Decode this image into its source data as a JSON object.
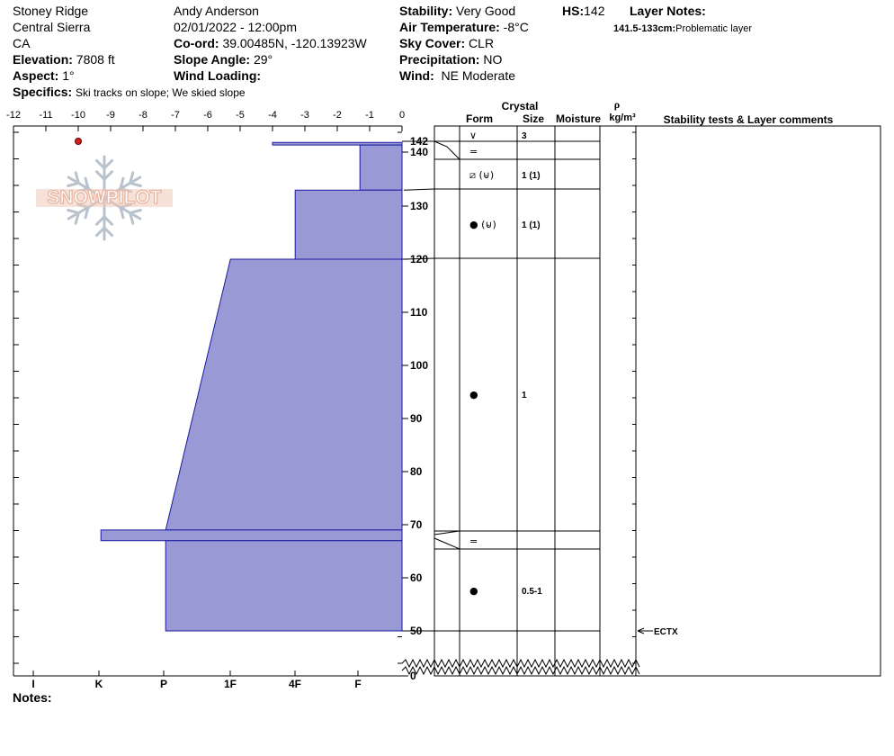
{
  "header": {
    "location": "Stoney Ridge",
    "range": "Central Sierra",
    "state": "CA",
    "elevation_label": "Elevation:",
    "elevation": "7808 ft",
    "aspect_label": "Aspect:",
    "aspect": "1°",
    "specifics_label": "Specifics:",
    "specifics": "Ski tracks on slope; We skied slope",
    "observer": "Andy Anderson",
    "datetime": "02/01/2022 - 12:00pm",
    "coord_label": "Co-ord:",
    "coord": "39.00485N, -120.13923W",
    "slope_label": "Slope Angle:",
    "slope": "29°",
    "wind_loading_label": "Wind Loading:",
    "wind_loading": "",
    "stability_label": "Stability:",
    "stability": "Very Good",
    "air_temp_label": "Air Temperature:",
    "air_temp": "-8°C",
    "sky_label": "Sky Cover:",
    "sky": "CLR",
    "precip_label": "Precipitation:",
    "precip": "NO",
    "wind_label": "Wind:",
    "wind": "NE Moderate",
    "hs_label": "HS:",
    "hs": "142",
    "layer_notes_label": "Layer Notes:",
    "layer_note_range": "141.5-133cm:",
    "layer_note_text": "Problematic layer"
  },
  "logo": {
    "text": "SNOWPILOT"
  },
  "notes_label": "Notes:",
  "chart_data": {
    "type": "area",
    "temp_axis": {
      "ticks": [
        "-12",
        "-11",
        "-10",
        "-9",
        "-8",
        "-7",
        "-6",
        "-5",
        "-4",
        "-3",
        "-2",
        "-1",
        "0"
      ],
      "range": [
        -12,
        0
      ]
    },
    "height_axis": {
      "ticks": [
        "142",
        "140",
        "130",
        "120",
        "110",
        "100",
        "90",
        "80",
        "70",
        "60",
        "50",
        "0"
      ],
      "range": [
        0,
        142
      ]
    },
    "hardness_axis": {
      "ticks": [
        "I",
        "K",
        "P",
        "1F",
        "4F",
        "F"
      ]
    },
    "temperature_points": [
      {
        "temp": -10,
        "height": 142
      }
    ],
    "hardness_profile": [
      {
        "top": 142,
        "bottom": 141.5,
        "upper_hardness": 4.0,
        "lower_hardness": 4.0
      },
      {
        "top": 141.5,
        "bottom": 133,
        "upper_hardness": 1.3,
        "lower_hardness": 1.3
      },
      {
        "top": 133,
        "bottom": 120,
        "upper_hardness": 3.3,
        "lower_hardness": 3.3
      },
      {
        "top": 120,
        "bottom": 69,
        "upper_hardness": 5.3,
        "lower_hardness": 7.3
      },
      {
        "top": 69,
        "bottom": 67,
        "upper_hardness": 9.3,
        "lower_hardness": 9.3
      },
      {
        "top": 67,
        "bottom": 50,
        "upper_hardness": 7.3,
        "lower_hardness": 7.3
      }
    ],
    "columns": {
      "crystal": "Crystal",
      "form": "Form",
      "size": "Size",
      "moisture": "Moisture",
      "rho": "ρ",
      "density_unit": "kg/m³",
      "comments": "Stability tests & Layer comments"
    },
    "layer_boundaries": [
      142,
      141.5,
      138,
      133,
      120,
      69,
      67,
      50
    ],
    "layers": [
      {
        "center": 141.5,
        "form": "∨",
        "size": "3"
      },
      {
        "center": 139.5,
        "form": "=",
        "size": ""
      },
      {
        "center": 135.5,
        "form": "⧄ (⊌)",
        "size": "1 (1)"
      },
      {
        "center": 126.5,
        "form": "● (⊌)",
        "size": "1 (1)"
      },
      {
        "center": 94.5,
        "form": "●",
        "size": "1"
      },
      {
        "center": 68,
        "form": "=",
        "size": ""
      },
      {
        "center": 58.5,
        "form": "●",
        "size": "0.5-1"
      }
    ],
    "stability_tests": [
      {
        "height": 50,
        "label": "ECTX"
      }
    ]
  }
}
